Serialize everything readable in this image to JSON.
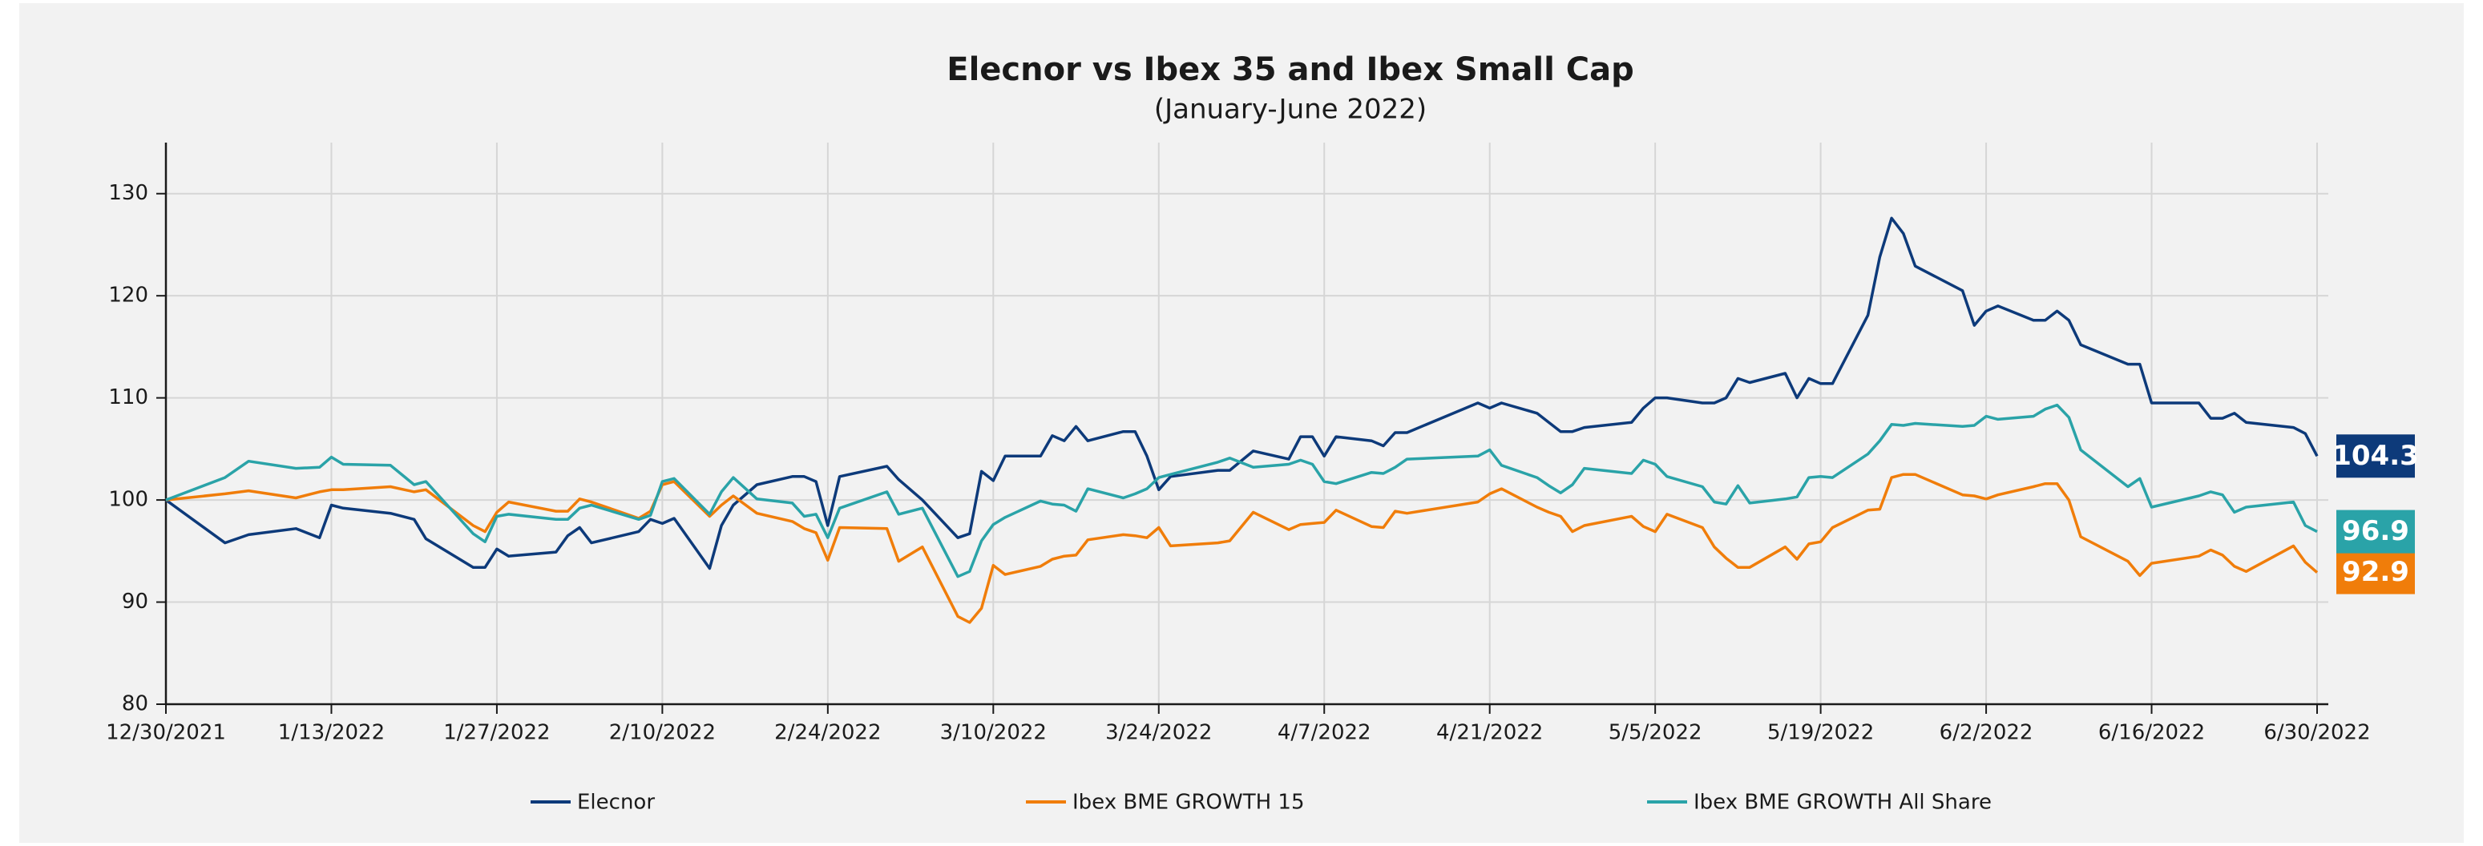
{
  "chart_data": {
    "type": "line",
    "title": "Elecnor vs Ibex 35 and Ibex Small Cap",
    "subtitle": "(January-June 2022)",
    "x": [
      "12/30/2021",
      "1/4/2022",
      "1/6/2022",
      "1/10/2022",
      "1/12/2022",
      "1/13/2022",
      "1/14/2022",
      "1/18/2022",
      "1/20/2022",
      "1/21/2022",
      "1/25/2022",
      "1/26/2022",
      "1/27/2022",
      "1/28/2022",
      "2/1/2022",
      "2/2/2022",
      "2/3/2022",
      "2/4/2022",
      "2/8/2022",
      "2/9/2022",
      "2/10/2022",
      "2/11/2022",
      "2/14/2022",
      "2/15/2022",
      "2/16/2022",
      "2/18/2022",
      "2/21/2022",
      "2/22/2022",
      "2/23/2022",
      "2/24/2022",
      "2/25/2022",
      "3/1/2022",
      "3/2/2022",
      "3/4/2022",
      "3/7/2022",
      "3/8/2022",
      "3/9/2022",
      "3/10/2022",
      "3/11/2022",
      "3/14/2022",
      "3/15/2022",
      "3/16/2022",
      "3/17/2022",
      "3/18/2022",
      "3/21/2022",
      "3/22/2022",
      "3/23/2022",
      "3/24/2022",
      "3/25/2022",
      "3/29/2022",
      "3/30/2022",
      "4/1/2022",
      "4/4/2022",
      "4/5/2022",
      "4/6/2022",
      "4/7/2022",
      "4/8/2022",
      "4/11/2022",
      "4/12/2022",
      "4/13/2022",
      "4/14/2022",
      "4/20/2022",
      "4/21/2022",
      "4/22/2022",
      "4/25/2022",
      "4/26/2022",
      "4/27/2022",
      "4/28/2022",
      "4/29/2022",
      "5/3/2022",
      "5/4/2022",
      "5/5/2022",
      "5/6/2022",
      "5/9/2022",
      "5/10/2022",
      "5/11/2022",
      "5/12/2022",
      "5/13/2022",
      "5/16/2022",
      "5/17/2022",
      "5/18/2022",
      "5/19/2022",
      "5/20/2022",
      "5/23/2022",
      "5/24/2022",
      "5/25/2022",
      "5/26/2022",
      "5/27/2022",
      "5/31/2022",
      "6/1/2022",
      "6/2/2022",
      "6/3/2022",
      "6/6/2022",
      "6/7/2022",
      "6/8/2022",
      "6/9/2022",
      "6/10/2022",
      "6/14/2022",
      "6/15/2022",
      "6/16/2022",
      "6/20/2022",
      "6/21/2022",
      "6/22/2022",
      "6/23/2022",
      "6/24/2022",
      "6/28/2022",
      "6/29/2022",
      "6/30/2022"
    ],
    "series": [
      {
        "name": "Elecnor",
        "color": "#0d3a7a",
        "values": [
          100,
          95.8,
          96.6,
          97.2,
          96.3,
          99.5,
          99.2,
          98.7,
          98.1,
          96.2,
          93.4,
          93.4,
          95.2,
          94.5,
          94.9,
          96.5,
          97.3,
          95.8,
          96.9,
          98.1,
          97.7,
          98.2,
          93.3,
          97.5,
          99.5,
          101.5,
          102.3,
          102.3,
          101.8,
          97.5,
          102.3,
          103.3,
          102,
          100,
          96.3,
          96.7,
          102.8,
          101.9,
          104.3,
          104.3,
          106.3,
          105.8,
          107.2,
          105.8,
          106.7,
          106.7,
          104.3,
          101,
          102.3,
          102.9,
          102.9,
          104.8,
          104,
          106.2,
          106.2,
          104.3,
          106.2,
          105.8,
          105.3,
          106.6,
          106.6,
          109.5,
          109,
          109.5,
          108.5,
          107.6,
          106.7,
          106.7,
          107.1,
          107.6,
          109,
          110,
          110,
          109.5,
          109.5,
          110,
          111.9,
          111.5,
          112.4,
          110,
          111.9,
          111.4,
          111.4,
          118.1,
          123.8,
          127.6,
          126.1,
          122.9,
          120.5,
          117.1,
          118.5,
          119,
          117.6,
          117.6,
          118.5,
          117.6,
          115.2,
          113.3,
          113.3,
          109.5,
          109.5,
          108,
          108,
          108.5,
          107.6,
          107.1,
          106.5,
          104.3
        ]
      },
      {
        "name": "Ibex BME GROWTH 15",
        "color": "#f07d0a",
        "values": [
          100,
          100.6,
          100.9,
          100.2,
          100.8,
          101,
          101,
          101.3,
          100.8,
          101,
          97.5,
          96.9,
          98.8,
          99.8,
          98.9,
          98.9,
          100.1,
          99.8,
          98.2,
          98.9,
          101.5,
          101.8,
          98.4,
          99.5,
          100.4,
          98.7,
          97.9,
          97.2,
          96.8,
          94.1,
          97.3,
          97.2,
          94,
          95.4,
          88.6,
          88,
          89.4,
          93.6,
          92.7,
          93.5,
          94.2,
          94.5,
          94.6,
          96.1,
          96.6,
          96.5,
          96.3,
          97.3,
          95.5,
          95.8,
          96,
          98.8,
          97.1,
          97.6,
          97.7,
          97.8,
          99,
          97.4,
          97.3,
          98.9,
          98.7,
          99.8,
          100.6,
          101.1,
          99.3,
          98.8,
          98.4,
          96.9,
          97.5,
          98.4,
          97.4,
          96.9,
          98.6,
          97.3,
          95.4,
          94.3,
          93.4,
          93.4,
          95.4,
          94.2,
          95.7,
          95.9,
          97.3,
          99,
          99.1,
          102.2,
          102.5,
          102.5,
          100.5,
          100.4,
          100.1,
          100.5,
          101.3,
          101.6,
          101.6,
          100,
          96.4,
          94,
          92.6,
          93.8,
          94.5,
          95.1,
          94.6,
          93.5,
          93,
          95.5,
          93.9,
          92.9
        ]
      },
      {
        "name": "Ibex BME GROWTH All Share",
        "color": "#2aa3a8",
        "values": [
          100,
          102.2,
          103.8,
          103.1,
          103.2,
          104.2,
          103.5,
          103.4,
          101.5,
          101.8,
          96.7,
          95.9,
          98.4,
          98.6,
          98.1,
          98.1,
          99.2,
          99.5,
          98.1,
          98.5,
          101.8,
          102.1,
          98.6,
          100.8,
          102.2,
          100.1,
          99.7,
          98.4,
          98.6,
          96.3,
          99.2,
          100.8,
          98.6,
          99.2,
          92.5,
          93,
          96,
          97.6,
          98.3,
          99.9,
          99.6,
          99.5,
          98.9,
          101.1,
          100.2,
          100.6,
          101.1,
          102.2,
          102.5,
          103.7,
          104.1,
          103.2,
          103.5,
          103.9,
          103.5,
          101.8,
          101.6,
          102.7,
          102.6,
          103.2,
          104,
          104.3,
          104.9,
          103.4,
          102.2,
          101.4,
          100.7,
          101.5,
          103.1,
          102.6,
          103.9,
          103.5,
          102.3,
          101.3,
          99.8,
          99.6,
          101.4,
          99.7,
          100.1,
          100.3,
          102.2,
          102.3,
          102.2,
          104.5,
          105.8,
          107.4,
          107.3,
          107.5,
          107.2,
          107.3,
          108.2,
          107.9,
          108.2,
          108.9,
          109.3,
          108.1,
          104.9,
          101.3,
          102.1,
          99.3,
          100.4,
          100.8,
          100.5,
          98.8,
          99.3,
          99.8,
          97.5,
          96.9
        ]
      }
    ],
    "xlim": [
      "12/30/2021",
      "6/30/2022"
    ],
    "xticks": [
      "12/30/2021",
      "1/13/2022",
      "1/27/2022",
      "2/10/2022",
      "2/24/2022",
      "3/10/2022",
      "3/24/2022",
      "4/7/2022",
      "4/21/2022",
      "5/5/2022",
      "5/19/2022",
      "6/2/2022",
      "6/16/2022",
      "6/30/2022"
    ],
    "ylim": [
      80,
      135
    ],
    "yticks": [
      80,
      90,
      100,
      110,
      120,
      130
    ],
    "grid": true,
    "legend": "bottom"
  }
}
